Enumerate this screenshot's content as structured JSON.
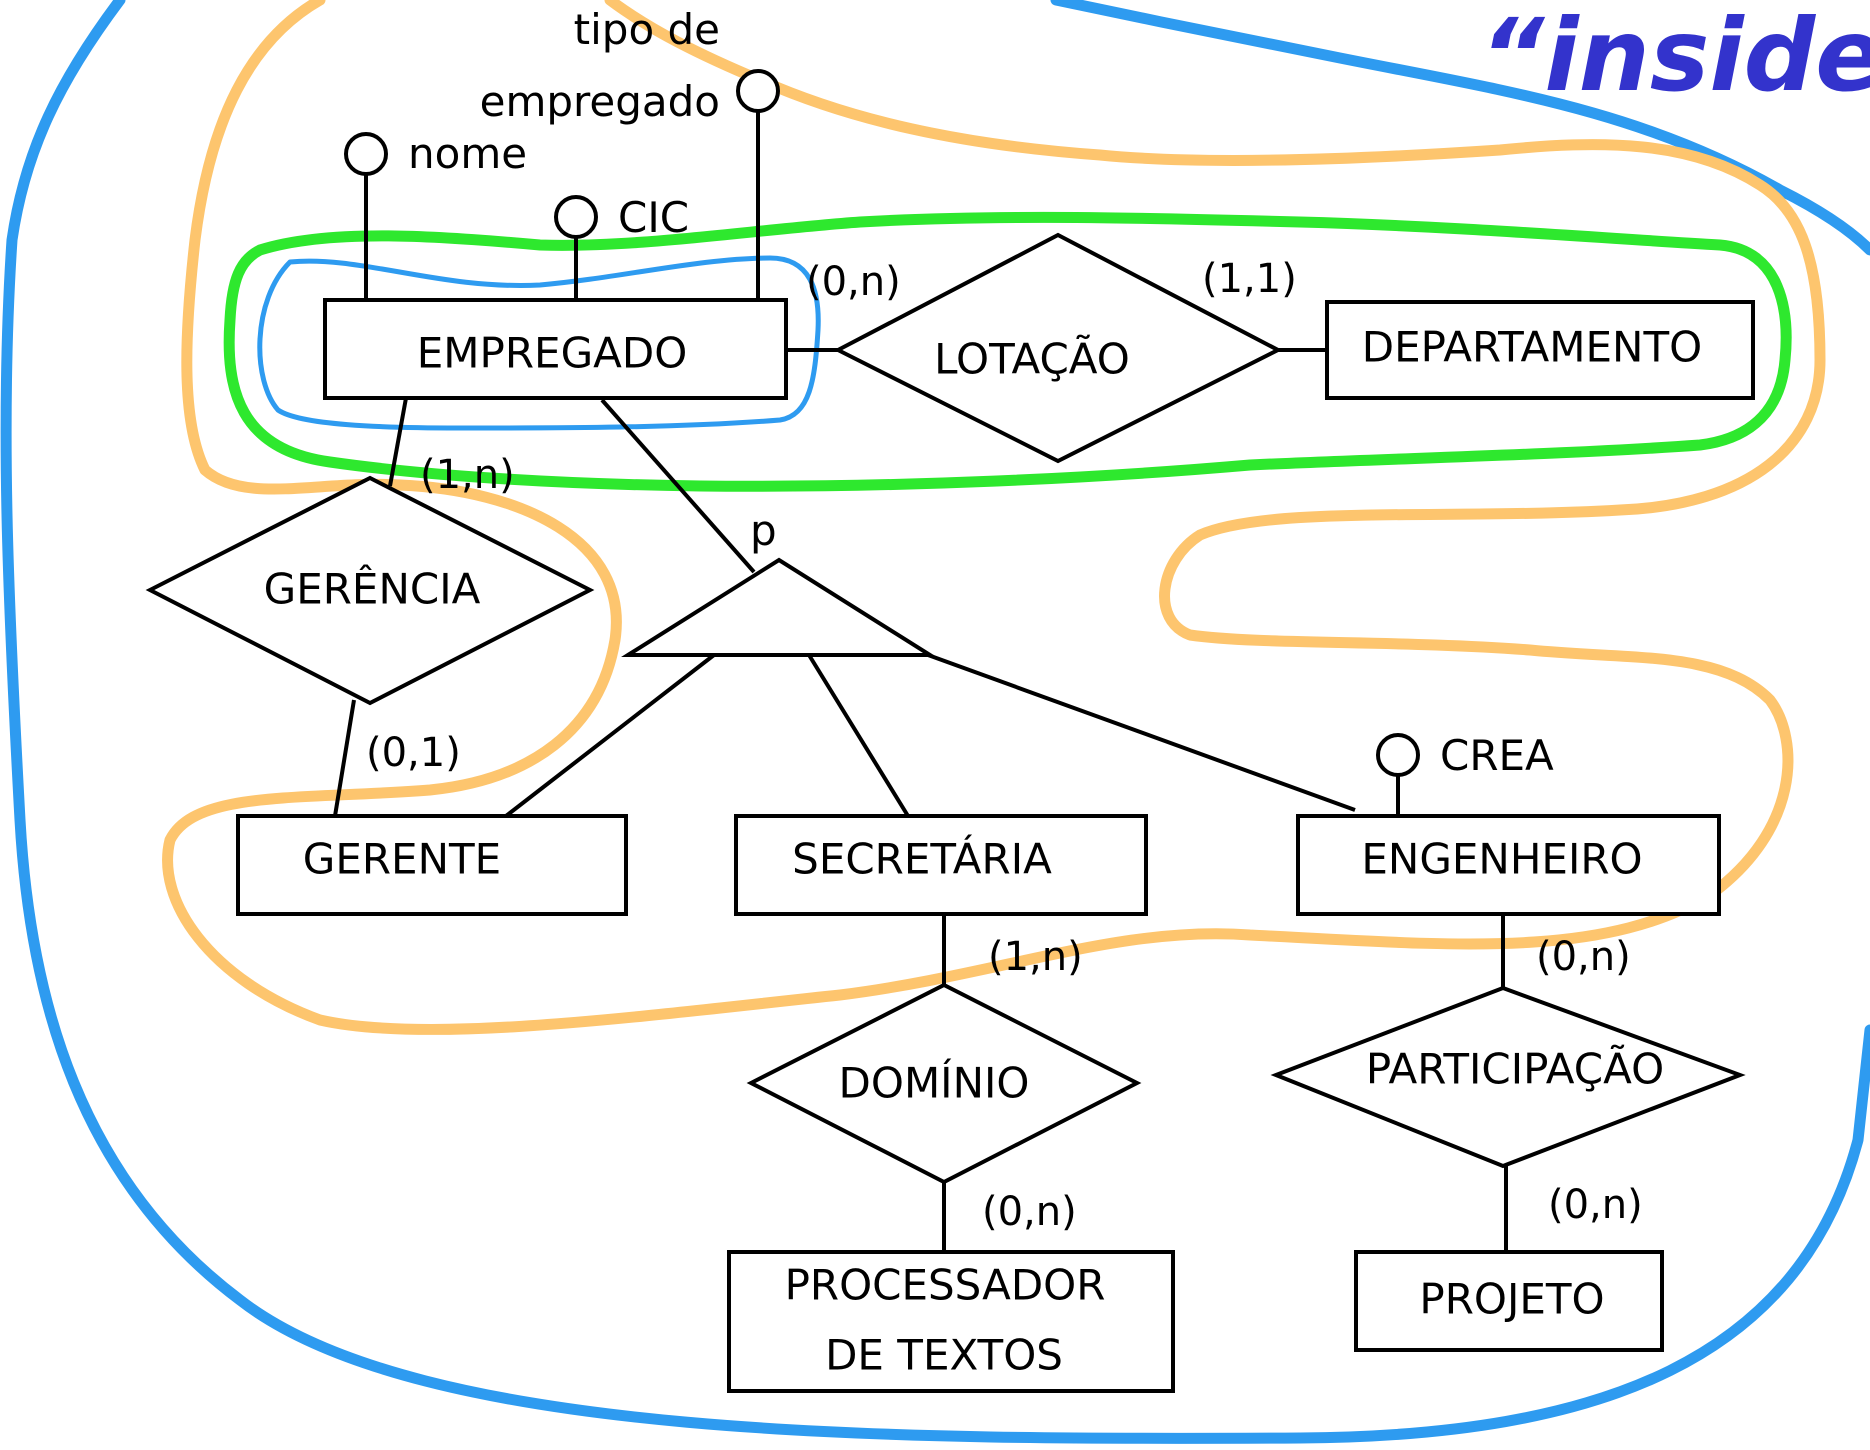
{
  "title": "“inside-",
  "colors": {
    "outer_loop": "#2e9bf0",
    "orange_loop": "#fdc56e",
    "green_loop": "#2ee82e",
    "inner_loop": "#2e9bf0",
    "title": "#3333cc"
  },
  "entities": {
    "empregado": "EMPREGADO",
    "departamento": "DEPARTAMENTO",
    "gerente": "GERENTE",
    "secretaria": "SECRETÁRIA",
    "engenheiro": "ENGENHEIRO",
    "processador_line1": "PROCESSADOR",
    "processador_line2": "DE TEXTOS",
    "projeto": "PROJETO"
  },
  "relationships": {
    "lotacao": "LOTAÇÃO",
    "gerencia": "GERÊNCIA",
    "dominio": "DOMÍNIO",
    "participacao": "PARTICIPAÇÃO"
  },
  "attributes": {
    "tipo_line1": "tipo de",
    "tipo_line2": "empregado",
    "nome": "nome",
    "cic": "CIC",
    "crea": "CREA"
  },
  "specialization": {
    "label": "p"
  },
  "cardinalities": {
    "empregado_lotacao": "(0,n)",
    "lotacao_departamento": "(1,1)",
    "empregado_gerencia": "(1,n)",
    "gerencia_gerente": "(0,1)",
    "secretaria_dominio": "(1,n)",
    "dominio_processador": "(0,n)",
    "engenheiro_participacao": "(0,n)",
    "participacao_projeto": "(0,n)"
  }
}
